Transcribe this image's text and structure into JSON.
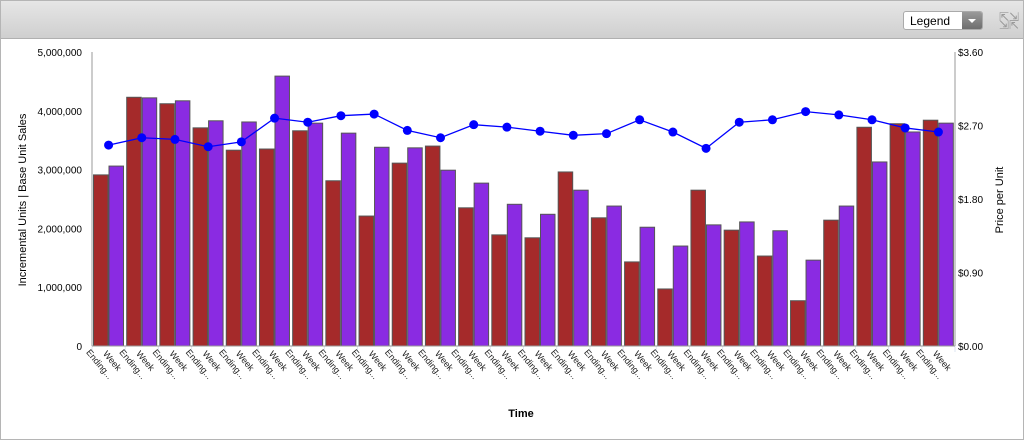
{
  "toolbar": {
    "legend_label": "Legend",
    "expand_icon": "expand-arrows-icon"
  },
  "chart_data": {
    "type": "bar+line",
    "categories": [
      "Week Ending...",
      "Week Ending...",
      "Week Ending...",
      "Week Ending...",
      "Week Ending...",
      "Week Ending...",
      "Week Ending...",
      "Week Ending...",
      "Week Ending...",
      "Week Ending...",
      "Week Ending...",
      "Week Ending...",
      "Week Ending...",
      "Week Ending...",
      "Week Ending...",
      "Week Ending...",
      "Week Ending...",
      "Week Ending...",
      "Week Ending...",
      "Week Ending...",
      "Week Ending...",
      "Week Ending...",
      "Week Ending...",
      "Week Ending...",
      "Week Ending...",
      "Week Ending..."
    ],
    "category_lines": [
      "Week",
      "Ending..."
    ],
    "xlabel": "Time",
    "ylabel": "Incremental Units | Base Unit Sales",
    "y2label": "Price per Unit",
    "ylim": [
      0,
      5000000
    ],
    "y2lim": [
      0,
      3.6
    ],
    "yticks": [
      "0",
      "1,000,000",
      "2,000,000",
      "3,000,000",
      "4,000,000",
      "5,000,000"
    ],
    "y2ticks": [
      "$0.00",
      "$0.90",
      "$1.80",
      "$2.70",
      "$3.60"
    ],
    "series": [
      {
        "name": "Incremental Units",
        "type": "bar",
        "axis": "left",
        "color": "#a52a2a",
        "values": [
          2910000,
          4230000,
          4120000,
          3710000,
          3330000,
          3350000,
          3660000,
          2810000,
          2210000,
          3110000,
          3400000,
          2350000,
          1890000,
          1840000,
          2960000,
          2180000,
          1430000,
          970000,
          2650000,
          1970000,
          1530000,
          770000,
          2140000,
          3720000,
          3780000,
          3840000
        ]
      },
      {
        "name": "Base Unit Sales",
        "type": "bar",
        "axis": "left",
        "color": "#8a2be2",
        "values": [
          3060000,
          4220000,
          4170000,
          3830000,
          3810000,
          4590000,
          3790000,
          3620000,
          3380000,
          3370000,
          2990000,
          2770000,
          2410000,
          2240000,
          2650000,
          2380000,
          2020000,
          1700000,
          2060000,
          2110000,
          1960000,
          1460000,
          2380000,
          3130000,
          3640000,
          3790000
        ]
      },
      {
        "name": "Price per Unit",
        "type": "line",
        "axis": "right",
        "color": "#0000ff",
        "values": [
          2.46,
          2.55,
          2.53,
          2.44,
          2.5,
          2.79,
          2.74,
          2.82,
          2.84,
          2.64,
          2.55,
          2.71,
          2.68,
          2.63,
          2.58,
          2.6,
          2.77,
          2.62,
          2.42,
          2.74,
          2.77,
          2.87,
          2.83,
          2.77,
          2.67,
          2.62
        ]
      }
    ],
    "grid": false,
    "legend": "hidden"
  }
}
